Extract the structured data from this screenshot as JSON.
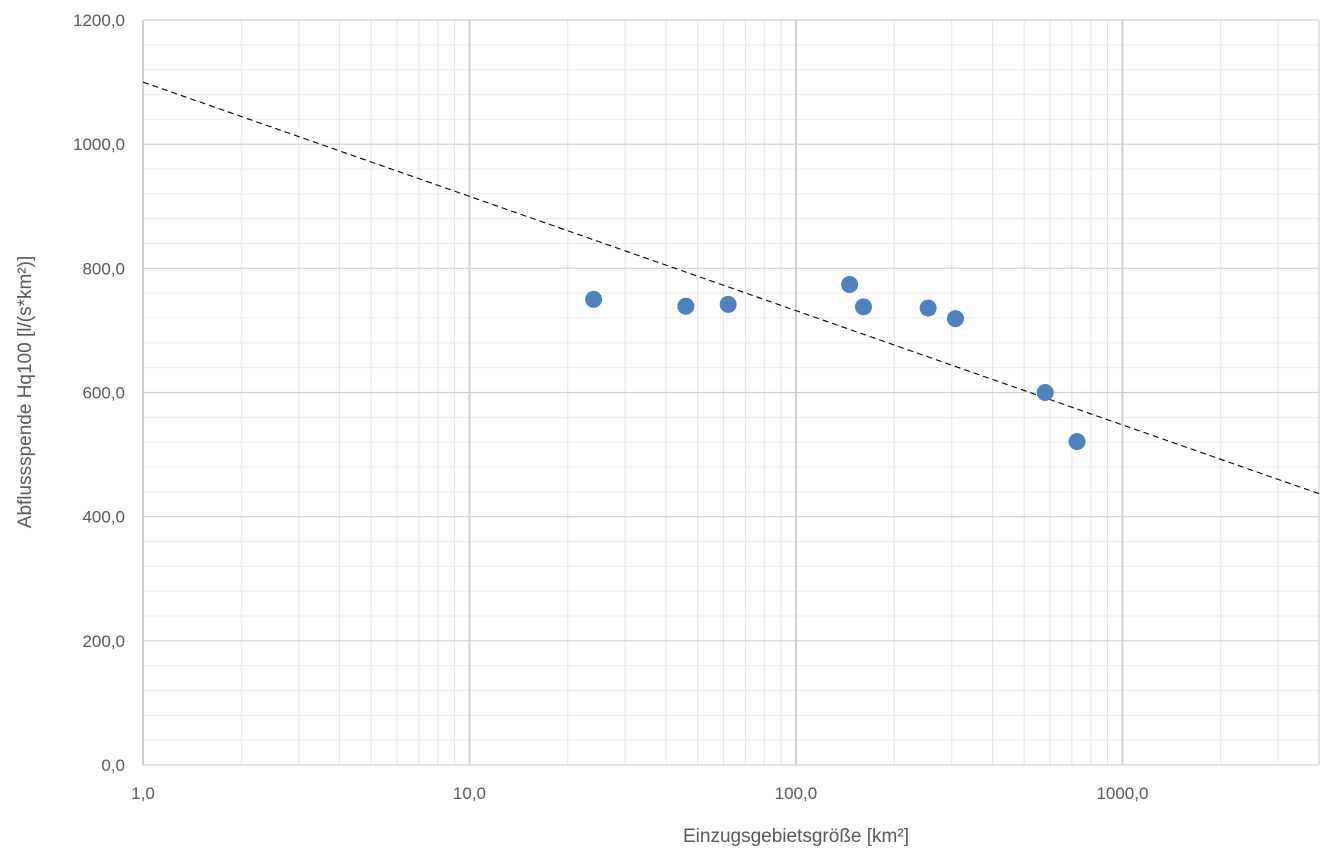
{
  "chart_data": {
    "type": "scatter",
    "xlabel": "Einzugsgebietsgröße [km²]",
    "ylabel": "Abflussspende Hq100 [l/(s*km²)]",
    "x_scale": "log",
    "xlim": [
      1,
      4000
    ],
    "ylim": [
      0,
      1200
    ],
    "x_ticks": [
      1,
      10,
      100,
      1000
    ],
    "x_tick_labels": [
      "1,0",
      "10,0",
      "100,0",
      "1000,0"
    ],
    "y_ticks": [
      0,
      200,
      400,
      600,
      800,
      1000,
      1200
    ],
    "y_tick_labels": [
      "0,0",
      "200,0",
      "400,0",
      "600,0",
      "800,0",
      "1000,0",
      "1200,0"
    ],
    "grid": true,
    "legend": "none",
    "series": [
      {
        "type": "scatter",
        "color": "#4e81bd",
        "x": [
          24,
          46,
          62,
          146,
          161,
          254,
          308,
          580,
          726
        ],
        "y": [
          750,
          739,
          742,
          774,
          738,
          736,
          719,
          600,
          521
        ]
      }
    ],
    "trendline": {
      "style": "dashed",
      "color": "#000000",
      "x": [
        1,
        4000
      ],
      "y": [
        1100,
        437
      ]
    }
  }
}
